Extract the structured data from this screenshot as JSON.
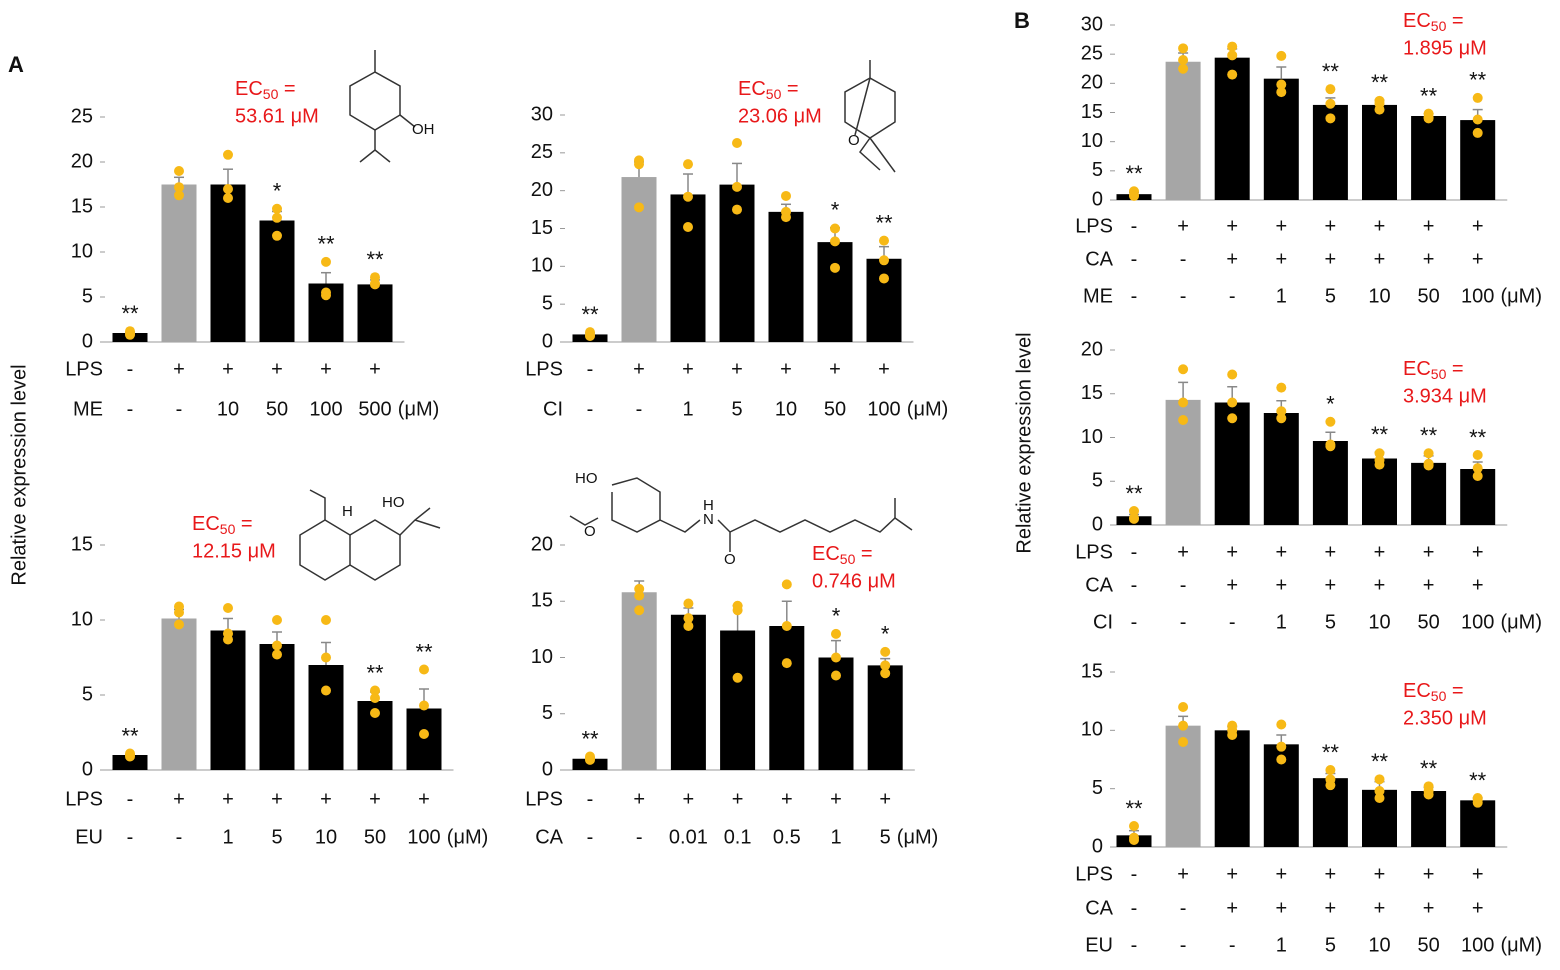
{
  "panel_labels": [
    "A",
    "B"
  ],
  "y_axis_labels": [
    "Relative expression level",
    "Relative expression level"
  ],
  "chart_data": [
    {
      "type": "bar",
      "ylim": [
        0,
        25
      ],
      "yticks": [
        0,
        5,
        10,
        15,
        20,
        25
      ],
      "values": [
        1,
        17.5,
        17.5,
        13.5,
        6.5,
        6.4
      ],
      "errors": [
        0.1,
        0.8,
        1.7,
        1.0,
        1.2,
        0.5
      ],
      "points": [
        [
          1.2,
          0.8,
          0.9
        ],
        [
          19,
          17.2,
          16.3
        ],
        [
          20.8,
          17,
          16
        ],
        [
          14.8,
          13.8,
          11.8
        ],
        [
          8.9,
          5.5,
          5.2
        ],
        [
          7.2,
          6.4,
          6.5
        ]
      ],
      "significance": [
        "**",
        null,
        null,
        "*",
        "**",
        "**"
      ],
      "bar_colors": [
        "#000000",
        "#a6a6a6",
        "#000000",
        "#000000",
        "#000000",
        "#000000"
      ],
      "point_color": "#f7b916",
      "treatment_rows": [
        {
          "name": "LPS",
          "values": [
            "-",
            "+",
            "+",
            "+",
            "+",
            "+"
          ]
        },
        {
          "name": "ME",
          "values": [
            "-",
            "-",
            "10",
            "50",
            "100",
            "500"
          ]
        }
      ],
      "unit": "(μM)",
      "ec50": {
        "prefix": "EC",
        "sub": "50",
        "suffix": " =",
        "value": "53.61 μM"
      },
      "structure_labels": [
        "OH"
      ]
    },
    {
      "type": "bar",
      "ylim": [
        0,
        30
      ],
      "yticks": [
        0,
        5,
        10,
        15,
        20,
        25,
        30
      ],
      "values": [
        1,
        21.8,
        19.5,
        20.8,
        17.2,
        13.2,
        11.0
      ],
      "errors": [
        0.2,
        2.0,
        2.7,
        2.8,
        1.0,
        1.9,
        1.6
      ],
      "points": [
        [
          1.3,
          0.8,
          0.9
        ],
        [
          24,
          23.5,
          17.8
        ],
        [
          23.5,
          19.2,
          15.2
        ],
        [
          26.3,
          20.5,
          17.5
        ],
        [
          19.3,
          17.2,
          16.5
        ],
        [
          15,
          13.3,
          9.8
        ],
        [
          13.4,
          10.8,
          8.4
        ]
      ],
      "significance": [
        "**",
        null,
        null,
        null,
        null,
        "*",
        "**"
      ],
      "bar_colors": [
        "#000000",
        "#a6a6a6",
        "#000000",
        "#000000",
        "#000000",
        "#000000",
        "#000000"
      ],
      "point_color": "#f7b916",
      "treatment_rows": [
        {
          "name": "LPS",
          "values": [
            "-",
            "+",
            "+",
            "+",
            "+",
            "+",
            "+"
          ]
        },
        {
          "name": "CI",
          "values": [
            "-",
            "-",
            "1",
            "5",
            "10",
            "50",
            "100"
          ]
        }
      ],
      "unit": "(μM)",
      "ec50": {
        "prefix": "EC",
        "sub": "50",
        "suffix": " =",
        "value": "23.06 μM"
      },
      "structure_labels": [
        "O"
      ]
    },
    {
      "type": "bar",
      "ylim": [
        0,
        15
      ],
      "yticks": [
        0,
        5,
        10,
        15
      ],
      "values": [
        1,
        10.1,
        9.3,
        8.4,
        7.0,
        4.6,
        4.1
      ],
      "errors": [
        0.05,
        0.6,
        0.8,
        0.8,
        1.5,
        0.6,
        1.3
      ],
      "points": [
        [
          1.1,
          0.9,
          1
        ],
        [
          10.9,
          10.5,
          9.7
        ],
        [
          10.8,
          9.1,
          8.7
        ],
        [
          10,
          8.3,
          7.7
        ],
        [
          10,
          7.5,
          5.3
        ],
        [
          5.3,
          4.8,
          3.8
        ],
        [
          6.7,
          4.3,
          2.4
        ]
      ],
      "significance": [
        "**",
        null,
        null,
        null,
        null,
        "**",
        "**"
      ],
      "bar_colors": [
        "#000000",
        "#a6a6a6",
        "#000000",
        "#000000",
        "#000000",
        "#000000",
        "#000000"
      ],
      "point_color": "#f7b916",
      "treatment_rows": [
        {
          "name": "LPS",
          "values": [
            "-",
            "+",
            "+",
            "+",
            "+",
            "+",
            "+"
          ]
        },
        {
          "name": "EU",
          "values": [
            "-",
            "-",
            "1",
            "5",
            "10",
            "50",
            "100"
          ]
        }
      ],
      "unit": "(μM)",
      "ec50": {
        "prefix": "EC",
        "sub": "50",
        "suffix": " =",
        "value": "12.15 μM"
      },
      "structure_labels": [
        "H",
        "HO"
      ]
    },
    {
      "type": "bar",
      "ylim": [
        0,
        20
      ],
      "yticks": [
        0,
        5,
        10,
        15,
        20
      ],
      "values": [
        1,
        15.8,
        13.8,
        12.4,
        12.8,
        10.0,
        9.3
      ],
      "errors": [
        0.1,
        1.0,
        0.6,
        2.2,
        2.2,
        1.5,
        0.6
      ],
      "points": [
        [
          1.2,
          0.9,
          1
        ],
        [
          16.1,
          15.5,
          14.2
        ],
        [
          14.8,
          13.5,
          12.8
        ],
        [
          14.6,
          14.2,
          8.2
        ],
        [
          16.5,
          12.8,
          9.5
        ],
        [
          12.1,
          10,
          8.4
        ],
        [
          10.5,
          9.3,
          8.6
        ]
      ],
      "significance": [
        "**",
        null,
        null,
        null,
        null,
        "*",
        "*"
      ],
      "bar_colors": [
        "#000000",
        "#a6a6a6",
        "#000000",
        "#000000",
        "#000000",
        "#000000",
        "#000000"
      ],
      "point_color": "#f7b916",
      "treatment_rows": [
        {
          "name": "LPS",
          "values": [
            "-",
            "+",
            "+",
            "+",
            "+",
            "+",
            "+"
          ]
        },
        {
          "name": "CA",
          "values": [
            "-",
            "-",
            "0.01",
            "0.1",
            "0.5",
            "1",
            "5"
          ]
        }
      ],
      "unit": "(μM)",
      "ec50": {
        "prefix": "EC",
        "sub": "50",
        "suffix": " =",
        "value": "0.746 μM"
      },
      "structure_labels": [
        "HO",
        "O",
        "H",
        "N",
        "O"
      ]
    },
    {
      "type": "bar",
      "ylim": [
        0,
        30
      ],
      "yticks": [
        0,
        5,
        10,
        15,
        20,
        25,
        30
      ],
      "values": [
        1,
        23.7,
        24.4,
        20.8,
        16.3,
        16.3,
        14.4,
        13.7
      ],
      "errors": [
        0.3,
        1.5,
        1.5,
        2.0,
        1.2,
        0.8,
        0.4,
        1.8
      ],
      "points": [
        [
          1.5,
          0.8,
          0.7
        ],
        [
          26,
          24,
          22.5
        ],
        [
          26.3,
          24.8,
          21.5
        ],
        [
          24.7,
          19.8,
          18.5
        ],
        [
          19,
          16.5,
          14
        ],
        [
          17,
          16.5,
          15.5
        ],
        [
          14.8,
          14.2,
          14
        ],
        [
          17.5,
          13.8,
          11.5
        ]
      ],
      "significance": [
        "**",
        null,
        null,
        null,
        "**",
        "**",
        "**",
        "**"
      ],
      "bar_colors": [
        "#000000",
        "#a6a6a6",
        "#000000",
        "#000000",
        "#000000",
        "#000000",
        "#000000",
        "#000000"
      ],
      "point_color": "#f7b916",
      "treatment_rows": [
        {
          "name": "LPS",
          "values": [
            "-",
            "+",
            "+",
            "+",
            "+",
            "+",
            "+",
            "+"
          ]
        },
        {
          "name": "CA",
          "values": [
            "-",
            "-",
            "+",
            "+",
            "+",
            "+",
            "+",
            "+"
          ]
        },
        {
          "name": "ME",
          "values": [
            "-",
            "-",
            "-",
            "1",
            "5",
            "10",
            "50",
            "100"
          ]
        }
      ],
      "unit": "(μM)",
      "ec50": {
        "prefix": "EC",
        "sub": "50",
        "suffix": " =",
        "value": "1.895 μM"
      }
    },
    {
      "type": "bar",
      "ylim": [
        0,
        20
      ],
      "yticks": [
        0,
        5,
        10,
        15,
        20
      ],
      "values": [
        1,
        14.3,
        14.0,
        12.8,
        9.6,
        7.6,
        7.1,
        6.4
      ],
      "errors": [
        0.2,
        2.0,
        1.8,
        1.4,
        1.0,
        0.7,
        0.8,
        0.8
      ],
      "points": [
        [
          1.6,
          0.8,
          0.7
        ],
        [
          17.8,
          14,
          12
        ],
        [
          17.2,
          14,
          12.2
        ],
        [
          15.7,
          13,
          12.2
        ],
        [
          11.8,
          9.2,
          9
        ],
        [
          8.2,
          7.4,
          6.9
        ],
        [
          8.2,
          7,
          6.8
        ],
        [
          8,
          6.5,
          5.6
        ]
      ],
      "significance": [
        "**",
        null,
        null,
        null,
        "*",
        "**",
        "**",
        "**"
      ],
      "bar_colors": [
        "#000000",
        "#a6a6a6",
        "#000000",
        "#000000",
        "#000000",
        "#000000",
        "#000000",
        "#000000"
      ],
      "point_color": "#f7b916",
      "treatment_rows": [
        {
          "name": "LPS",
          "values": [
            "-",
            "+",
            "+",
            "+",
            "+",
            "+",
            "+",
            "+"
          ]
        },
        {
          "name": "CA",
          "values": [
            "-",
            "-",
            "+",
            "+",
            "+",
            "+",
            "+",
            "+"
          ]
        },
        {
          "name": "CI",
          "values": [
            "-",
            "-",
            "-",
            "1",
            "5",
            "10",
            "50",
            "100"
          ]
        }
      ],
      "unit": "(μM)",
      "ec50": {
        "prefix": "EC",
        "sub": "50",
        "suffix": " =",
        "value": "3.934 μM"
      }
    },
    {
      "type": "bar",
      "ylim": [
        0,
        15
      ],
      "yticks": [
        0,
        5,
        10,
        15
      ],
      "values": [
        1,
        10.4,
        10.0,
        8.8,
        5.9,
        4.9,
        4.8,
        4.0
      ],
      "errors": [
        0.4,
        0.8,
        0.3,
        0.8,
        0.4,
        0.7,
        0.3,
        0.2
      ],
      "points": [
        [
          1.8,
          0.8,
          0.6
        ],
        [
          12,
          10.4,
          9
        ],
        [
          10.4,
          10,
          9.6
        ],
        [
          10.5,
          8.6,
          7.5
        ],
        [
          6.6,
          5.8,
          5.3
        ],
        [
          5.8,
          4.8,
          4.2
        ],
        [
          5.2,
          4.8,
          4.5
        ],
        [
          4.2,
          4,
          3.8
        ]
      ],
      "significance": [
        "**",
        null,
        null,
        null,
        "**",
        "**",
        "**",
        "**"
      ],
      "bar_colors": [
        "#000000",
        "#a6a6a6",
        "#000000",
        "#000000",
        "#000000",
        "#000000",
        "#000000",
        "#000000"
      ],
      "point_color": "#f7b916",
      "treatment_rows": [
        {
          "name": "LPS",
          "values": [
            "-",
            "+",
            "+",
            "+",
            "+",
            "+",
            "+",
            "+"
          ]
        },
        {
          "name": "CA",
          "values": [
            "-",
            "-",
            "+",
            "+",
            "+",
            "+",
            "+",
            "+"
          ]
        },
        {
          "name": "EU",
          "values": [
            "-",
            "-",
            "-",
            "1",
            "5",
            "10",
            "50",
            "100"
          ]
        }
      ],
      "unit": "(μM)",
      "ec50": {
        "prefix": "EC",
        "sub": "50",
        "suffix": " =",
        "value": "2.350 μM"
      }
    }
  ]
}
